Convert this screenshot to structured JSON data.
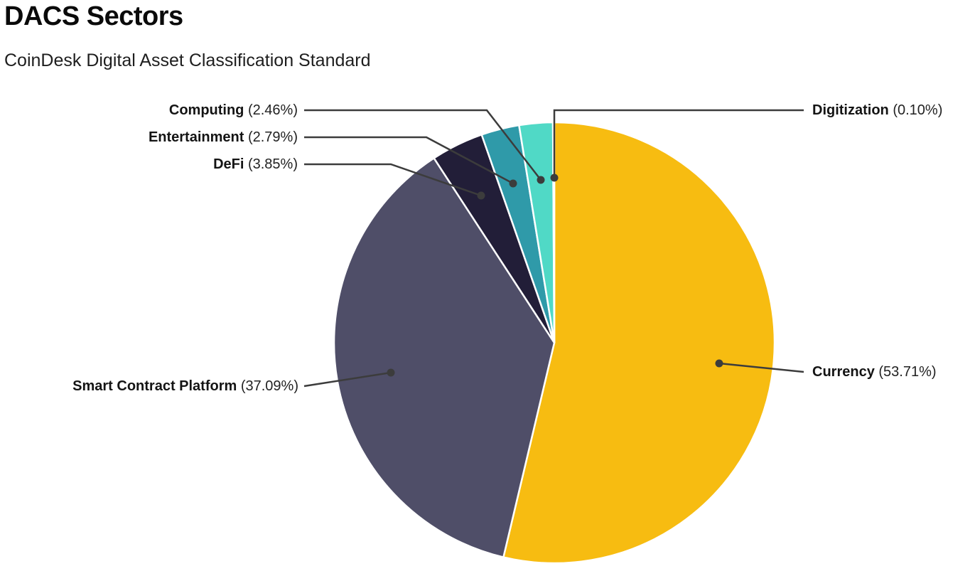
{
  "header": {
    "title": "DACS Sectors",
    "subtitle": "CoinDesk Digital Asset Classification Standard"
  },
  "chart_data": {
    "type": "pie",
    "title": "DACS Sectors",
    "subtitle": "CoinDesk Digital Asset Classification Standard",
    "unit": "%",
    "total": 100.0,
    "start_angle": "12-o-clock",
    "direction": "clockwise",
    "legend_position": "callout-labels",
    "separator_color": "#ffffff",
    "callout_line_color": "#3c3c3c",
    "slices": [
      {
        "label": "Currency",
        "value": 53.71,
        "display": "(53.71%)",
        "color": "#F7BC11"
      },
      {
        "label": "Smart Contract Platform",
        "value": 37.09,
        "display": "(37.09%)",
        "color": "#4F4E68"
      },
      {
        "label": "DeFi",
        "value": 3.85,
        "display": "(3.85%)",
        "color": "#221E38"
      },
      {
        "label": "Entertainment",
        "value": 2.79,
        "display": "(2.79%)",
        "color": "#2F9AA9"
      },
      {
        "label": "Computing",
        "value": 2.46,
        "display": "(2.46%)",
        "color": "#50D9C6"
      },
      {
        "label": "Digitization",
        "value": 0.1,
        "display": "(0.10%)",
        "color": "#6FE0C8"
      }
    ]
  }
}
